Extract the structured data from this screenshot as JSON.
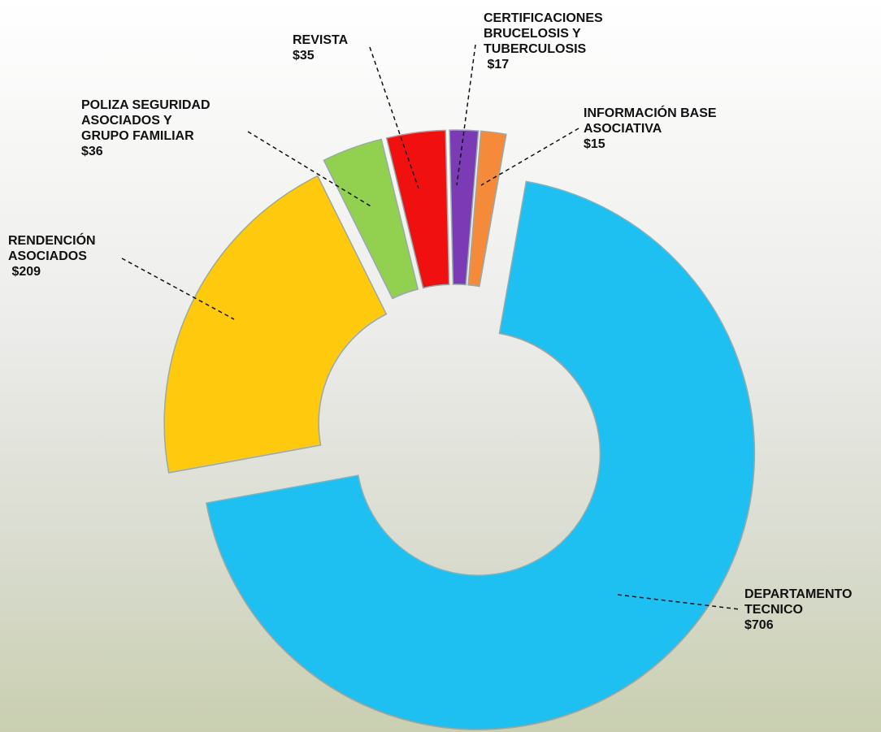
{
  "chart_data": {
    "type": "donut",
    "categories": [
      "DEPARTAMENTO\nTECNICO",
      "RENDENCIÓN\nASOCIADOS",
      "POLIZA SEGURIDAD\nASOCIADOS Y\nGRUPO FAMILIAR",
      "REVISTA",
      "CERTIFICACIONES\nBRUCELOSIS Y\nTUBERCULOSIS",
      "INFORMACIÓN BASE\nASOCIATIVA"
    ],
    "values": [
      706,
      209,
      36,
      35,
      17,
      15
    ],
    "value_labels": [
      "$706",
      " $209",
      "$36",
      "$35",
      " $17",
      "$15"
    ],
    "colors": [
      "#1ec0f2",
      "#ffc90e",
      "#92d050",
      "#f01010",
      "#7a3bb5",
      "#f58a3a"
    ]
  }
}
